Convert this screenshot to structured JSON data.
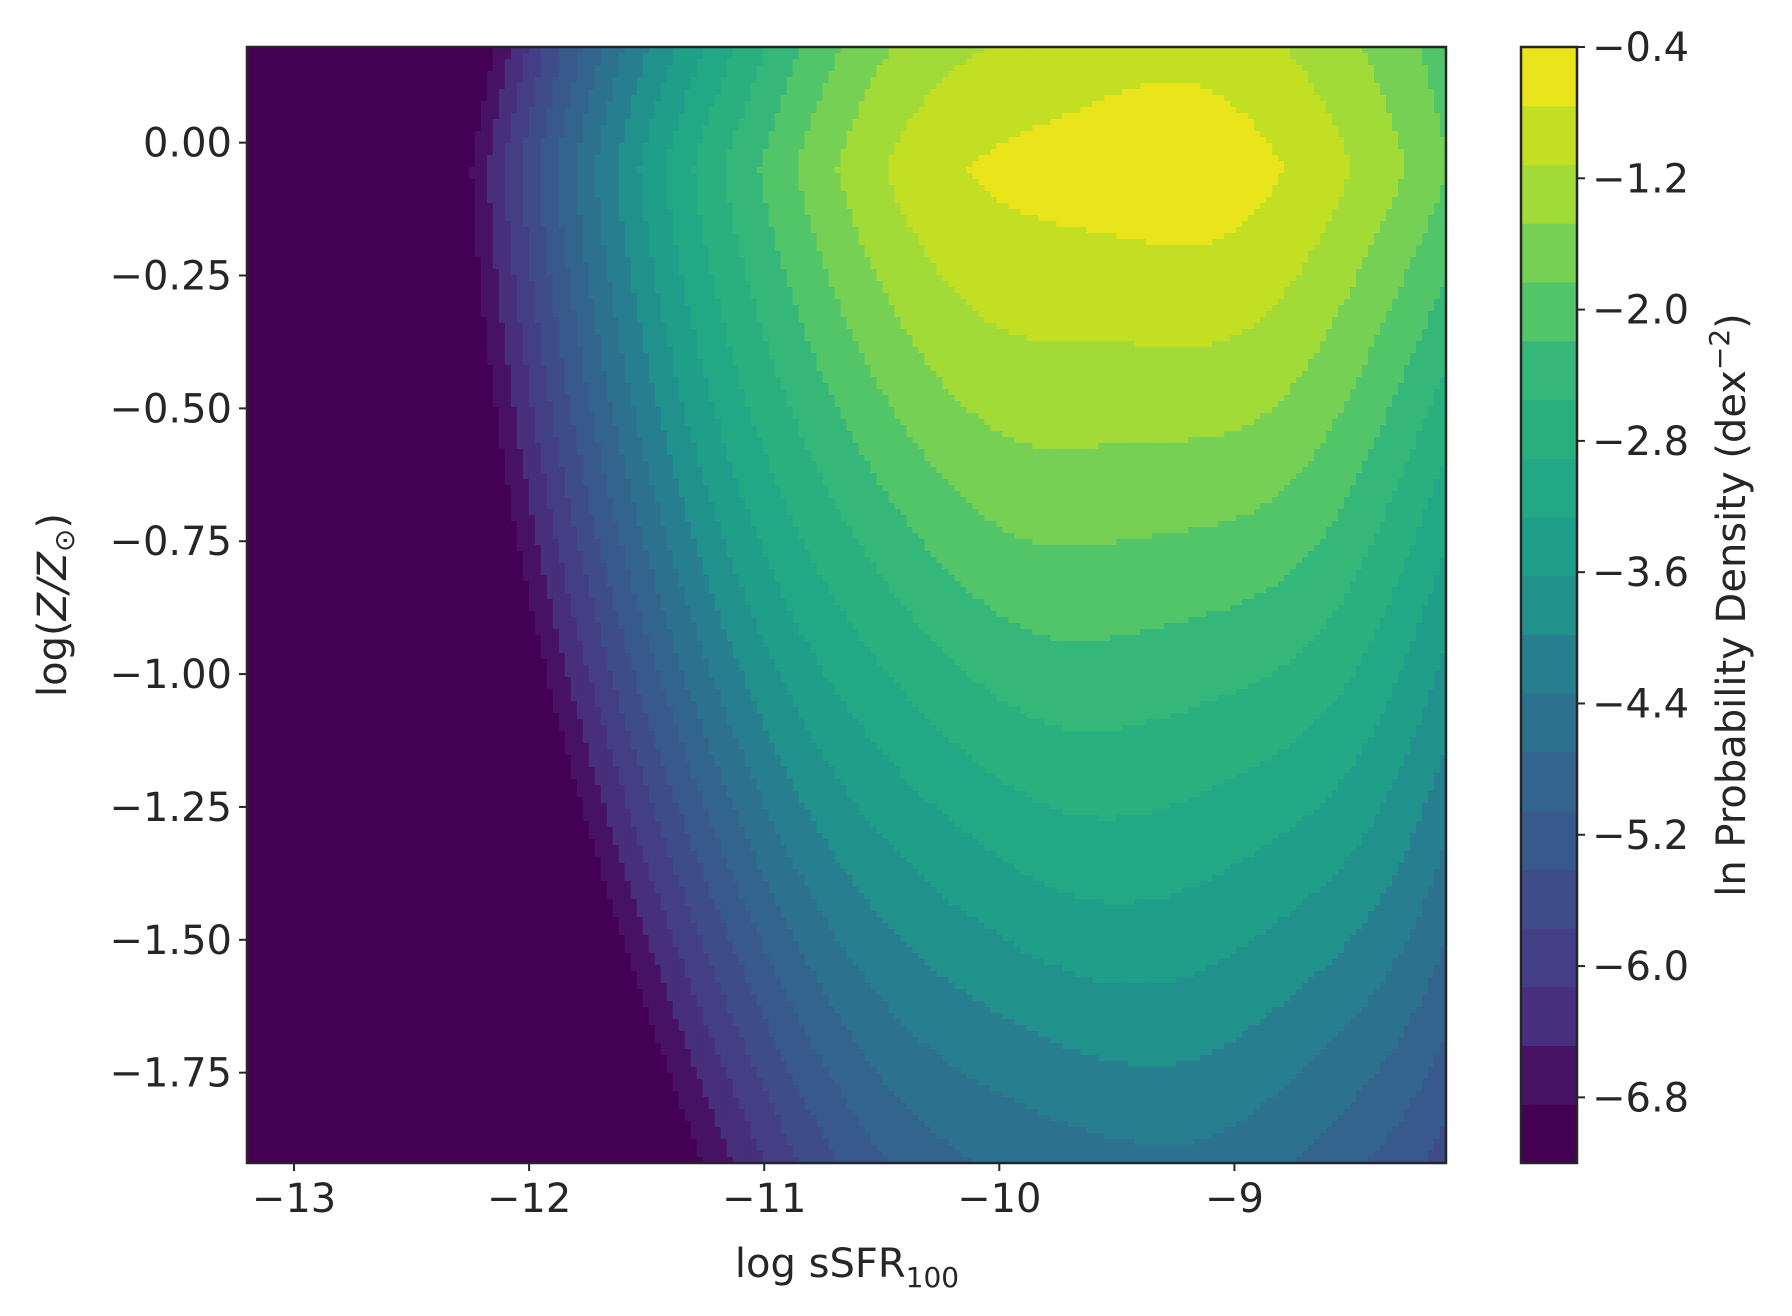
{
  "chart_data": {
    "type": "heatmap",
    "subtype": "filled-contour",
    "title": "",
    "xlabel_parts": {
      "main": "log  sSFR",
      "sub": "100"
    },
    "ylabel_parts": {
      "prefix": "log(",
      "italic": "Z/Z",
      "sub": "⊙",
      "suffix": ")"
    },
    "xlim": [
      -13.2,
      -8.1
    ],
    "ylim": [
      -1.92,
      0.18
    ],
    "x_ticks": [
      -13,
      -12,
      -11,
      -10,
      -9
    ],
    "x_tick_labels": [
      "−13",
      "−12",
      "−11",
      "−10",
      "−9"
    ],
    "y_ticks": [
      0.0,
      -0.25,
      -0.5,
      -0.75,
      -1.0,
      -1.25,
      -1.5,
      -1.75
    ],
    "y_tick_labels": [
      "0.00",
      "−0.25",
      "−0.50",
      "−0.75",
      "−1.00",
      "−1.25",
      "−1.50",
      "−1.75"
    ],
    "grid": false,
    "colormap": "viridis",
    "colorbar": {
      "label_parts": {
        "main": "ln Probability Density (dex",
        "sup": "−2",
        "suffix": ")"
      },
      "min": -7.2,
      "max": -0.4,
      "ticks": [
        -0.4,
        -1.2,
        -2.0,
        -2.8,
        -3.6,
        -4.4,
        -5.2,
        -6.0,
        -6.8
      ],
      "tick_labels": [
        "−0.4",
        "−1.2",
        "−2.0",
        "−2.8",
        "−3.6",
        "−4.4",
        "−5.2",
        "−6.0",
        "−6.8"
      ],
      "level_colors": [
        "#440154",
        "#471164",
        "#472f7d",
        "#433e85",
        "#3e4c8a",
        "#38598c",
        "#32648e",
        "#2c728e",
        "#277e8e",
        "#21918c",
        "#1f9e89",
        "#22a884",
        "#2ab07f",
        "#35b779",
        "#52c569",
        "#75d054",
        "#a2da37",
        "#c2df23",
        "#e9e51a"
      ]
    },
    "peak": {
      "x": -9.42,
      "y": -0.05,
      "value": -0.55
    },
    "contour_levels": [
      -7.2,
      -6.8,
      -6.4,
      -6.0,
      -5.6,
      -5.2,
      -4.8,
      -4.4,
      -4.0,
      -3.6,
      -3.2,
      -2.8,
      -2.4,
      -2.0,
      -1.6,
      -1.2,
      -0.8,
      -0.4
    ]
  }
}
